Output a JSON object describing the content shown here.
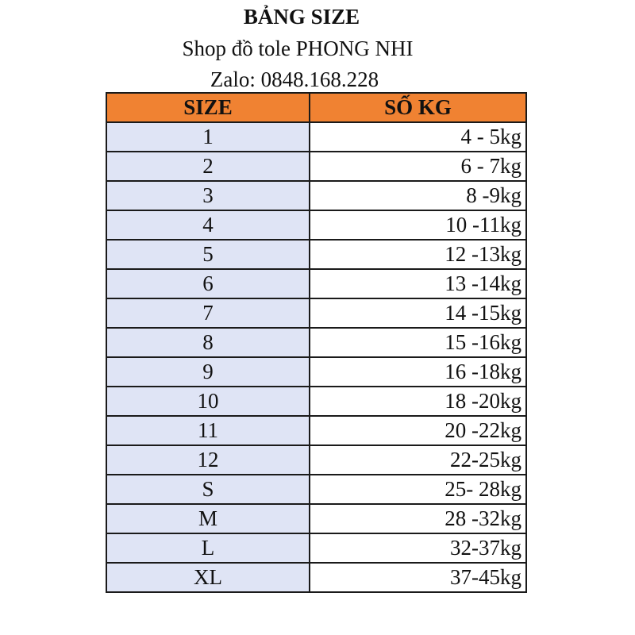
{
  "header": {
    "title": "BẢNG SIZE",
    "shop": "Shop đồ tole PHONG NHI",
    "contact": "Zalo: 0848.168.228"
  },
  "table": {
    "columns": [
      "SIZE",
      "SỐ KG"
    ],
    "rows": [
      {
        "size": "1",
        "kg": "4 - 5kg"
      },
      {
        "size": "2",
        "kg": "6 - 7kg"
      },
      {
        "size": "3",
        "kg": "8 -9kg"
      },
      {
        "size": "4",
        "kg": "10 -11kg"
      },
      {
        "size": "5",
        "kg": "12 -13kg"
      },
      {
        "size": "6",
        "kg": "13 -14kg"
      },
      {
        "size": "7",
        "kg": "14 -15kg"
      },
      {
        "size": "8",
        "kg": "15 -16kg"
      },
      {
        "size": "9",
        "kg": "16 -18kg"
      },
      {
        "size": "10",
        "kg": "18 -20kg"
      },
      {
        "size": "11",
        "kg": "20 -22kg"
      },
      {
        "size": "12",
        "kg": "22-25kg"
      },
      {
        "size": "S",
        "kg": "25- 28kg"
      },
      {
        "size": "M",
        "kg": "28 -32kg"
      },
      {
        "size": "L",
        "kg": "32-37kg"
      },
      {
        "size": "XL",
        "kg": "37-45kg"
      }
    ]
  },
  "colors": {
    "header_fill": "#f08232",
    "size_cell_fill": "#dfe4f5",
    "border": "#1a1a1a"
  }
}
